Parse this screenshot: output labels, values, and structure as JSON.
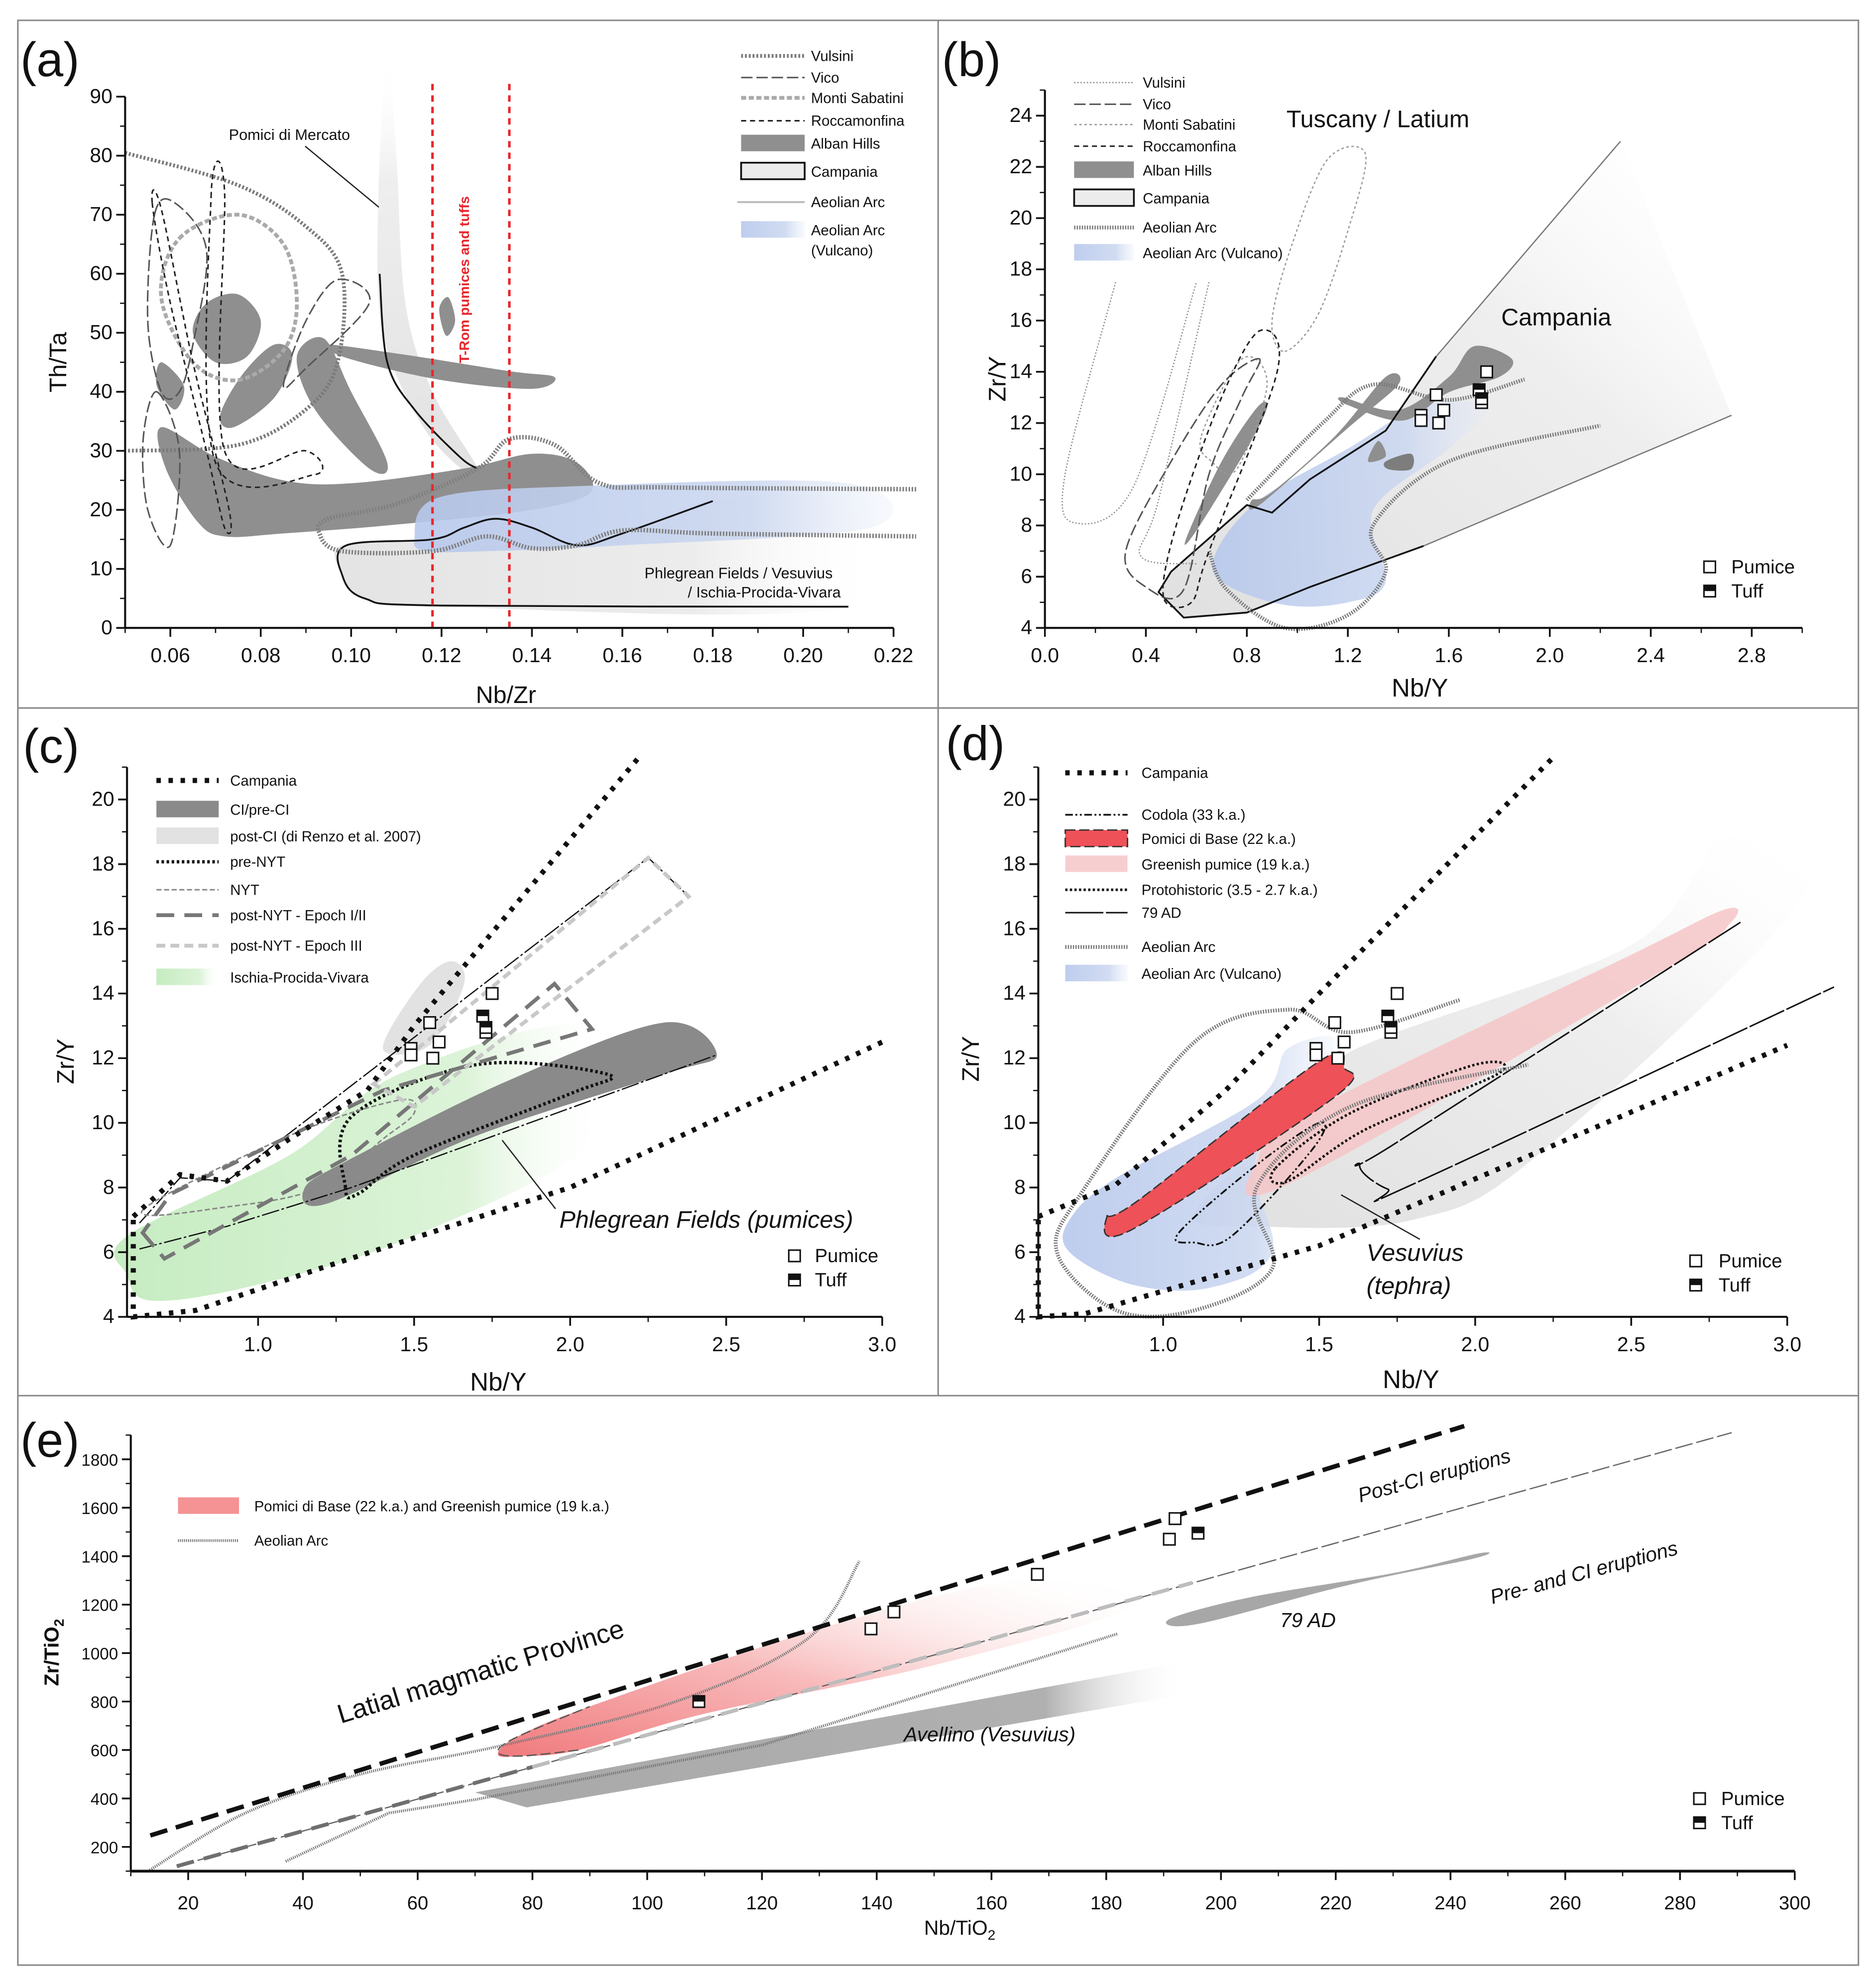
{
  "chart_data": [
    {
      "panel": "(a)",
      "type": "scatter",
      "xlabel": "Nb/Zr",
      "ylabel": "Th/Ta",
      "xlim": [
        0.05,
        0.22
      ],
      "ylim": [
        0,
        90
      ],
      "xticks": [
        "0.06",
        "0.08",
        "0.10",
        "0.12",
        "0.14",
        "0.16",
        "0.18",
        "0.20",
        "0.22"
      ],
      "yticks": [
        "0",
        "10",
        "20",
        "30",
        "40",
        "50",
        "60",
        "70",
        "80",
        "90"
      ],
      "legend": [
        "Vulsini",
        "Vico",
        "Monti Sabatini",
        "Roccamonfina",
        "Alban Hills",
        "Campania",
        "Aeolian Arc",
        "Aeolian Arc",
        "(Vulcano)"
      ],
      "legend_placement": "top-right",
      "annotations": [
        "Pomici di Mercato",
        "T-Rom pumices and tuffs",
        "Phlegrean Fields / Vesuvius",
        "/ Ischia-Procida-Vivara"
      ],
      "reference_lines_x": [
        0.118,
        0.135
      ],
      "reference_color": "#e8262b",
      "samples": []
    },
    {
      "panel": "(b)",
      "type": "scatter",
      "xlabel": "Nb/Y",
      "ylabel": "Zr/Y",
      "xlim": [
        0.0,
        3.0
      ],
      "ylim": [
        4,
        25
      ],
      "xticks": [
        "0.0",
        "0.4",
        "0.8",
        "1.2",
        "1.6",
        "2.0",
        "2.4",
        "2.8"
      ],
      "yticks": [
        "4",
        "6",
        "8",
        "10",
        "12",
        "14",
        "16",
        "18",
        "20",
        "22",
        "24"
      ],
      "legend": [
        "Vulsini",
        "Vico",
        "Monti Sabatini",
        "Roccamonfina",
        "Alban Hills",
        "Campania",
        "Aeolian Arc",
        "Aeolian Arc (Vulcano)"
      ],
      "legend_placement": "top-left",
      "annotations": [
        "Tuscany / Latium",
        "Campania"
      ],
      "sample_legend": [
        "Pumice",
        "Tuff"
      ],
      "samples": {
        "pumice": [
          [
            1.49,
            12.3
          ],
          [
            1.49,
            12.1
          ],
          [
            1.55,
            13.1
          ],
          [
            1.56,
            12.0
          ],
          [
            1.58,
            12.5
          ],
          [
            1.75,
            14.0
          ],
          [
            1.73,
            12.8
          ]
        ],
        "tuff": [
          [
            1.72,
            13.3
          ],
          [
            1.73,
            12.95
          ]
        ]
      }
    },
    {
      "panel": "(c)",
      "type": "scatter",
      "xlabel": "Nb/Y",
      "ylabel": "Zr/Y",
      "xlim": [
        0.58,
        3.0
      ],
      "ylim": [
        4,
        21
      ],
      "xticks": [
        "1.0",
        "1.5",
        "2.0",
        "2.5",
        "3.0"
      ],
      "yticks": [
        "4",
        "6",
        "8",
        "10",
        "12",
        "14",
        "16",
        "18",
        "20"
      ],
      "legend": [
        "Campania",
        "CI/pre-CI",
        "post-CI (di Renzo et al. 2007)",
        "pre-NYT",
        "NYT",
        "post-NYT - Epoch I/II",
        "post-NYT - Epoch III",
        "Ischia-Procida-Vivara"
      ],
      "legend_placement": "top-left",
      "annotations": [
        "Phlegrean Fields (pumices)"
      ],
      "sample_legend": [
        "Pumice",
        "Tuff"
      ],
      "samples": {
        "pumice": [
          [
            1.49,
            12.3
          ],
          [
            1.49,
            12.1
          ],
          [
            1.55,
            13.1
          ],
          [
            1.56,
            12.0
          ],
          [
            1.58,
            12.5
          ],
          [
            1.75,
            14.0
          ],
          [
            1.73,
            12.8
          ]
        ],
        "tuff": [
          [
            1.72,
            13.3
          ],
          [
            1.73,
            12.95
          ]
        ]
      }
    },
    {
      "panel": "(d)",
      "type": "scatter",
      "xlabel": "Nb/Y",
      "ylabel": "Zr/Y",
      "xlim": [
        0.6,
        3.0
      ],
      "ylim": [
        4,
        21
      ],
      "xticks": [
        "1.0",
        "1.5",
        "2.0",
        "2.5",
        "3.0"
      ],
      "yticks": [
        "4",
        "6",
        "8",
        "10",
        "12",
        "14",
        "16",
        "18",
        "20"
      ],
      "legend": [
        "Campania",
        "Codola (33 k.a.)",
        "Pomici di Base (22 k.a.)",
        "Greenish pumice (19 k.a.)",
        "Protohistoric (3.5 - 2.7 k.a.)",
        "79 AD",
        "Aeolian Arc",
        "Aeolian Arc (Vulcano)"
      ],
      "legend_placement": "top-left",
      "annotations": [
        "Vesuvius",
        "(tephra)"
      ],
      "sample_legend": [
        "Pumice",
        "Tuff"
      ],
      "samples": {
        "pumice": [
          [
            1.49,
            12.3
          ],
          [
            1.49,
            12.1
          ],
          [
            1.55,
            13.1
          ],
          [
            1.56,
            12.0
          ],
          [
            1.58,
            12.5
          ],
          [
            1.75,
            14.0
          ],
          [
            1.73,
            12.8
          ]
        ],
        "tuff": [
          [
            1.72,
            13.3
          ],
          [
            1.73,
            12.95
          ]
        ]
      }
    },
    {
      "panel": "(e)",
      "type": "scatter",
      "xlabel": "Nb/TiO",
      "xlabel_sub": "2",
      "ylabel": "Zr/TiO",
      "ylabel_sub": "2",
      "xlim": [
        10,
        300
      ],
      "ylim": [
        100,
        1900
      ],
      "xticks": [
        "20",
        "40",
        "60",
        "80",
        "100",
        "120",
        "140",
        "160",
        "180",
        "200",
        "220",
        "240",
        "260",
        "280",
        "300"
      ],
      "yticks": [
        "200",
        "400",
        "600",
        "800",
        "1000",
        "1200",
        "1400",
        "1600",
        "1800"
      ],
      "legend": [
        "Pomici di Base (22 k.a.) and Greenish pumice (19 k.a.)",
        "Aeolian Arc"
      ],
      "legend_placement": "top-left",
      "annotations": [
        "Latial magmatic Province",
        "Post-CI eruptions",
        "Pre- and CI eruptions",
        "79 AD",
        "Avellino (Vesuvius)"
      ],
      "sample_legend": [
        "Pumice",
        "Tuff"
      ],
      "samples": {
        "pumice": [
          [
            139,
            1100
          ],
          [
            143,
            1170
          ],
          [
            168,
            1325
          ],
          [
            191,
            1470
          ],
          [
            192,
            1555
          ]
        ],
        "tuff": [
          [
            109,
            800
          ],
          [
            196,
            1495
          ]
        ]
      }
    }
  ],
  "colors": {
    "alban_hills": "#8f8f8f",
    "campania": "#e8e8e8",
    "aeolian_vulcano": "#c6d3ee",
    "ischia": "#cdeec9",
    "pomici_di_base": "#e8474c",
    "greenish_pumice": "#f6c6c8",
    "t_rom_lines": "#e8262b"
  }
}
